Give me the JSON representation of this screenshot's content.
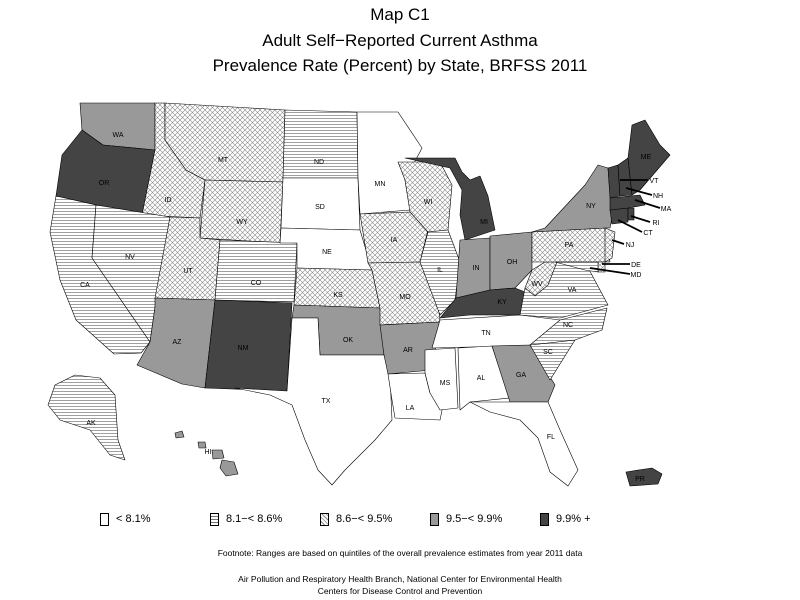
{
  "title": {
    "line1": "Map C1",
    "line2": "Adult Self−Reported Current Asthma",
    "line3": "Prevalence Rate (Percent) by State, BRFSS 2011"
  },
  "legend": {
    "classes": [
      {
        "key": "q1",
        "label": "< 8.1%",
        "pattern": "white"
      },
      {
        "key": "q2",
        "label": "8.1−< 8.6%",
        "pattern": "horizontal-lines"
      },
      {
        "key": "q3",
        "label": "8.6−< 9.5%",
        "pattern": "crosshatch"
      },
      {
        "key": "q4",
        "label": "9.5−< 9.9%",
        "pattern": "gray",
        "color": "#999999"
      },
      {
        "key": "q5",
        "label": "9.9% +",
        "pattern": "dark",
        "color": "#444444"
      }
    ]
  },
  "states": [
    {
      "abbr": "WA",
      "class": "q4"
    },
    {
      "abbr": "OR",
      "class": "q5"
    },
    {
      "abbr": "CA",
      "class": "q2"
    },
    {
      "abbr": "ID",
      "class": "q3"
    },
    {
      "abbr": "NV",
      "class": "q2"
    },
    {
      "abbr": "MT",
      "class": "q3"
    },
    {
      "abbr": "WY",
      "class": "q3"
    },
    {
      "abbr": "UT",
      "class": "q3"
    },
    {
      "abbr": "CO",
      "class": "q2"
    },
    {
      "abbr": "AZ",
      "class": "q4"
    },
    {
      "abbr": "NM",
      "class": "q5"
    },
    {
      "abbr": "ND",
      "class": "q2"
    },
    {
      "abbr": "SD",
      "class": "q1"
    },
    {
      "abbr": "NE",
      "class": "q1"
    },
    {
      "abbr": "KS",
      "class": "q3"
    },
    {
      "abbr": "OK",
      "class": "q4"
    },
    {
      "abbr": "TX",
      "class": "q1"
    },
    {
      "abbr": "MN",
      "class": "q1"
    },
    {
      "abbr": "IA",
      "class": "q3"
    },
    {
      "abbr": "MO",
      "class": "q3"
    },
    {
      "abbr": "AR",
      "class": "q4"
    },
    {
      "abbr": "LA",
      "class": "q1"
    },
    {
      "abbr": "WI",
      "class": "q3"
    },
    {
      "abbr": "IL",
      "class": "q2"
    },
    {
      "abbr": "MI",
      "class": "q5"
    },
    {
      "abbr": "IN",
      "class": "q4"
    },
    {
      "abbr": "OH",
      "class": "q4"
    },
    {
      "abbr": "KY",
      "class": "q5"
    },
    {
      "abbr": "TN",
      "class": "q1"
    },
    {
      "abbr": "MS",
      "class": "q1"
    },
    {
      "abbr": "AL",
      "class": "q1"
    },
    {
      "abbr": "GA",
      "class": "q4"
    },
    {
      "abbr": "FL",
      "class": "q1"
    },
    {
      "abbr": "SC",
      "class": "q2"
    },
    {
      "abbr": "NC",
      "class": "q2"
    },
    {
      "abbr": "VA",
      "class": "q2"
    },
    {
      "abbr": "WV",
      "class": "q3"
    },
    {
      "abbr": "PA",
      "class": "q3"
    },
    {
      "abbr": "NY",
      "class": "q4"
    },
    {
      "abbr": "NJ",
      "class": "q3"
    },
    {
      "abbr": "DE",
      "class": "q3"
    },
    {
      "abbr": "MD",
      "class": "q2"
    },
    {
      "abbr": "CT",
      "class": "q5"
    },
    {
      "abbr": "RI",
      "class": "q5"
    },
    {
      "abbr": "MA",
      "class": "q5"
    },
    {
      "abbr": "VT",
      "class": "q5"
    },
    {
      "abbr": "NH",
      "class": "q5"
    },
    {
      "abbr": "ME",
      "class": "q5"
    },
    {
      "abbr": "AK",
      "class": "q2"
    },
    {
      "abbr": "HI",
      "class": "q4"
    },
    {
      "abbr": "PR",
      "class": "q5"
    }
  ],
  "footnote": "Footnote: Ranges are based on quintiles of the overall prevalence estimates from year 2011 data",
  "credit_line1": "Air Pollution and Respiratory Health Branch, National Center for Environmental Health",
  "credit_line2": "Centers for Disease Control and Prevention"
}
